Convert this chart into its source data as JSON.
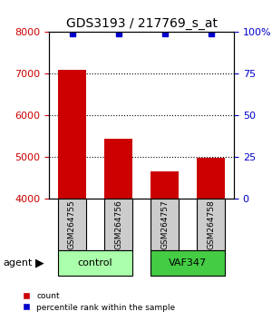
{
  "title": "GDS3193 / 217769_s_at",
  "samples": [
    "GSM264755",
    "GSM264756",
    "GSM264757",
    "GSM264758"
  ],
  "counts": [
    7100,
    5450,
    4670,
    4980
  ],
  "percentile_ranks": [
    99,
    99,
    99,
    99
  ],
  "ylim_left": [
    4000,
    8000
  ],
  "ylim_right": [
    0,
    100
  ],
  "yticks_left": [
    4000,
    5000,
    6000,
    7000,
    8000
  ],
  "yticks_right": [
    0,
    25,
    50,
    75,
    100
  ],
  "bar_color": "#cc0000",
  "dot_color": "#0000cc",
  "bar_width": 0.6,
  "groups": [
    {
      "label": "control",
      "samples": [
        0,
        1
      ],
      "color": "#aaffaa"
    },
    {
      "label": "VAF347",
      "samples": [
        2,
        3
      ],
      "color": "#44cc44"
    }
  ],
  "agent_label": "agent",
  "legend_count_label": "count",
  "legend_pct_label": "percentile rank within the sample",
  "background_color": "#ffffff",
  "plot_bg_color": "#ffffff",
  "grid_color": "#000000",
  "tick_label_color_left": "#cc0000",
  "tick_label_color_right": "#0000cc",
  "sample_box_color": "#cccccc",
  "sample_box_edge": "#000000"
}
